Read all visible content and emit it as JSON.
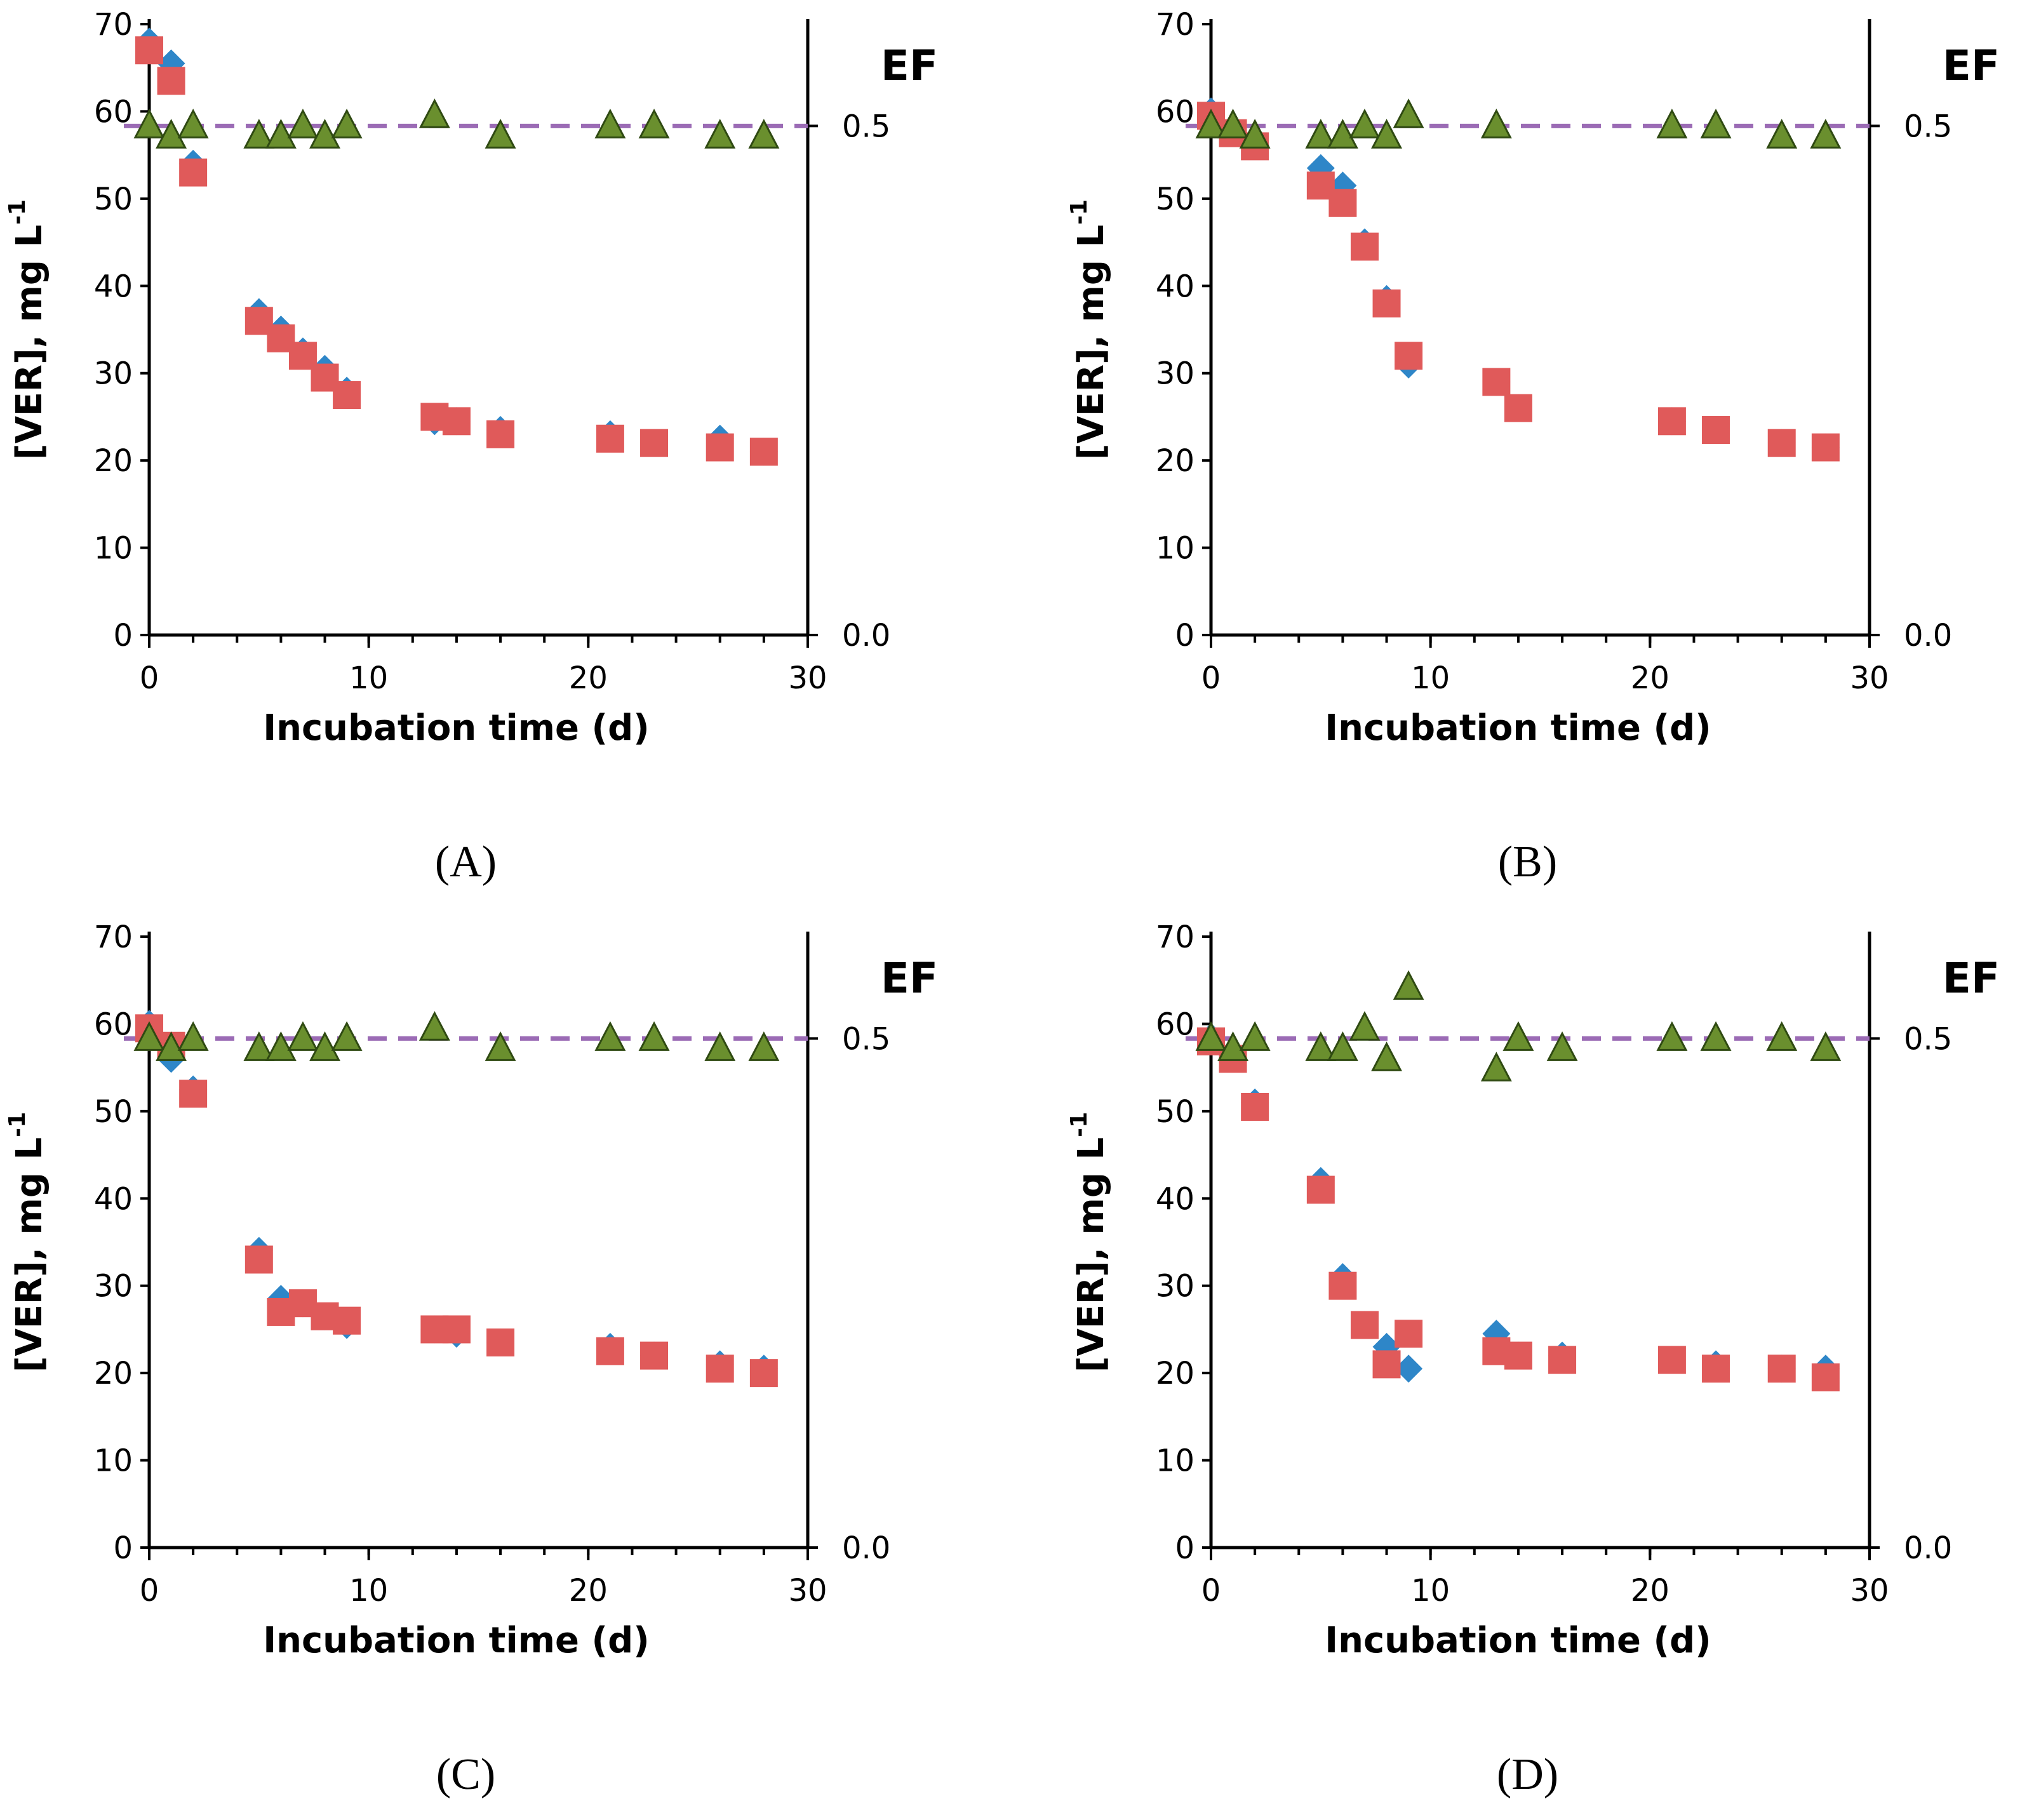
{
  "chart_data": [
    {
      "type": "scatter",
      "panel_label": "(A)",
      "xlabel": "Incubation time (d)",
      "ylabel": "[VER], mg L",
      "ylabel_superscript": "-1",
      "y2label": "EF",
      "xlim": [
        0,
        30
      ],
      "ylim": [
        0,
        70
      ],
      "y2lim": [
        0.0,
        0.6
      ],
      "xticks": [
        "0",
        "10",
        "20",
        "30"
      ],
      "yticks": [
        "0",
        "10",
        "20",
        "30",
        "40",
        "50",
        "60",
        "70"
      ],
      "y2ticks": [
        "0.0",
        "0.5"
      ],
      "ef_reference_line": 0.5,
      "series": [
        {
          "name": "blue diamonds",
          "marker": "diamond",
          "color": "#2e86c8",
          "axis": "left",
          "x": [
            0,
            1,
            2,
            5,
            6,
            7,
            8,
            9,
            13,
            14,
            16,
            21,
            23,
            26,
            28
          ],
          "y": [
            68,
            65.5,
            54,
            37,
            35,
            32.5,
            30.5,
            28,
            24.5,
            24.5,
            23.5,
            23,
            22,
            22.5,
            21
          ]
        },
        {
          "name": "red squares",
          "marker": "square",
          "color": "#e05a5a",
          "axis": "left",
          "x": [
            0,
            1,
            2,
            5,
            6,
            7,
            8,
            9,
            13,
            14,
            16,
            21,
            23,
            26,
            28
          ],
          "y": [
            67,
            63.5,
            53,
            36,
            34,
            32,
            29.5,
            27.5,
            25,
            24.5,
            23,
            22.5,
            22,
            21.5,
            21
          ]
        },
        {
          "name": "green triangles",
          "marker": "triangle",
          "color": "#6a8f2e",
          "axis": "right",
          "x": [
            0,
            1,
            2,
            5,
            6,
            7,
            8,
            9,
            13,
            16,
            21,
            23,
            26,
            28
          ],
          "y": [
            0.5,
            0.49,
            0.5,
            0.49,
            0.49,
            0.5,
            0.49,
            0.5,
            0.51,
            0.49,
            0.5,
            0.5,
            0.49,
            0.49
          ]
        }
      ]
    },
    {
      "type": "scatter",
      "panel_label": "(B)",
      "xlabel": "Incubation time (d)",
      "ylabel": "[VER], mg L",
      "ylabel_superscript": "-1",
      "y2label": "EF",
      "xlim": [
        0,
        30
      ],
      "ylim": [
        0,
        70
      ],
      "y2lim": [
        0.0,
        0.6
      ],
      "xticks": [
        "0",
        "10",
        "20",
        "30"
      ],
      "yticks": [
        "0",
        "10",
        "20",
        "30",
        "40",
        "50",
        "60",
        "70"
      ],
      "y2ticks": [
        "0.0",
        "0.5"
      ],
      "ef_reference_line": 0.5,
      "series": [
        {
          "name": "blue diamonds",
          "marker": "diamond",
          "color": "#2e86c8",
          "axis": "left",
          "x": [
            0,
            1,
            2,
            5,
            6,
            7,
            8,
            9,
            13,
            14,
            21,
            23,
            26,
            28
          ],
          "y": [
            60,
            58,
            56.5,
            53.5,
            51.5,
            45,
            38.5,
            31,
            29,
            26,
            24.5,
            23.5,
            22,
            21.5
          ]
        },
        {
          "name": "red squares",
          "marker": "square",
          "color": "#e05a5a",
          "axis": "left",
          "x": [
            0,
            1,
            2,
            5,
            6,
            7,
            8,
            9,
            13,
            14,
            21,
            23,
            26,
            28
          ],
          "y": [
            59.5,
            57.5,
            56,
            51.5,
            49.5,
            44.5,
            38,
            32,
            29,
            26,
            24.5,
            23.5,
            22,
            21.5
          ]
        },
        {
          "name": "green triangles",
          "marker": "triangle",
          "color": "#6a8f2e",
          "axis": "right",
          "x": [
            0,
            1,
            2,
            5,
            6,
            7,
            8,
            9,
            13,
            21,
            23,
            26,
            28
          ],
          "y": [
            0.5,
            0.5,
            0.49,
            0.49,
            0.49,
            0.5,
            0.49,
            0.51,
            0.5,
            0.5,
            0.5,
            0.49,
            0.49
          ]
        }
      ]
    },
    {
      "type": "scatter",
      "panel_label": "(C)",
      "xlabel": "Incubation time (d)",
      "ylabel": "[VER], mg L",
      "ylabel_superscript": "-1",
      "y2label": "EF",
      "xlim": [
        0,
        30
      ],
      "ylim": [
        0,
        70
      ],
      "y2lim": [
        0.0,
        0.6
      ],
      "xticks": [
        "0",
        "10",
        "20",
        "30"
      ],
      "yticks": [
        "0",
        "10",
        "20",
        "30",
        "40",
        "50",
        "60",
        "70"
      ],
      "y2ticks": [
        "0.0",
        "0.5"
      ],
      "ef_reference_line": 0.5,
      "series": [
        {
          "name": "blue diamonds",
          "marker": "diamond",
          "color": "#2e86c8",
          "axis": "left",
          "x": [
            0,
            1,
            2,
            5,
            6,
            7,
            8,
            9,
            13,
            14,
            16,
            21,
            23,
            26,
            28
          ],
          "y": [
            60,
            56,
            52.5,
            34,
            28.5,
            28,
            26.5,
            25.5,
            25,
            24.5,
            23.5,
            23,
            22,
            21,
            20.5
          ]
        },
        {
          "name": "red squares",
          "marker": "square",
          "color": "#e05a5a",
          "axis": "left",
          "x": [
            0,
            1,
            2,
            5,
            6,
            7,
            8,
            9,
            13,
            14,
            16,
            21,
            23,
            26,
            28
          ],
          "y": [
            59.5,
            57.5,
            52,
            33,
            27,
            28,
            26.5,
            26,
            25,
            25,
            23.5,
            22.5,
            22,
            20.5,
            20
          ]
        },
        {
          "name": "green triangles",
          "marker": "triangle",
          "color": "#6a8f2e",
          "axis": "right",
          "x": [
            0,
            1,
            2,
            5,
            6,
            7,
            8,
            9,
            13,
            16,
            21,
            23,
            26,
            28
          ],
          "y": [
            0.5,
            0.49,
            0.5,
            0.49,
            0.49,
            0.5,
            0.49,
            0.5,
            0.51,
            0.49,
            0.5,
            0.5,
            0.49,
            0.49
          ]
        }
      ]
    },
    {
      "type": "scatter",
      "panel_label": "(D)",
      "xlabel": "Incubation time (d)",
      "ylabel": "[VER], mg L",
      "ylabel_superscript": "-1",
      "y2label": "EF",
      "xlim": [
        0,
        30
      ],
      "ylim": [
        0,
        70
      ],
      "y2lim": [
        0.0,
        0.6
      ],
      "xticks": [
        "0",
        "10",
        "20",
        "30"
      ],
      "yticks": [
        "0",
        "10",
        "20",
        "30",
        "40",
        "50",
        "60",
        "70"
      ],
      "y2ticks": [
        "0.0",
        "0.5"
      ],
      "ef_reference_line": 0.5,
      "series": [
        {
          "name": "blue diamonds",
          "marker": "diamond",
          "color": "#2e86c8",
          "axis": "left",
          "x": [
            0,
            1,
            2,
            5,
            6,
            7,
            8,
            9,
            13,
            14,
            16,
            21,
            23,
            26,
            28
          ],
          "y": [
            58.5,
            56.5,
            51,
            42,
            31,
            25.5,
            23,
            20.5,
            24.5,
            22,
            22,
            21.5,
            21,
            20.5,
            20.5
          ]
        },
        {
          "name": "red squares",
          "marker": "square",
          "color": "#e05a5a",
          "axis": "left",
          "x": [
            0,
            1,
            2,
            5,
            6,
            7,
            8,
            9,
            13,
            14,
            16,
            21,
            23,
            26,
            28
          ],
          "y": [
            58,
            56,
            50.5,
            41,
            30,
            25.5,
            21,
            24.5,
            22.5,
            22,
            21.5,
            21.5,
            20.5,
            20.5,
            19.5
          ]
        },
        {
          "name": "green triangles",
          "marker": "triangle",
          "color": "#6a8f2e",
          "axis": "right",
          "x": [
            0,
            1,
            2,
            5,
            6,
            7,
            8,
            9,
            13,
            14,
            16,
            21,
            23,
            26,
            28
          ],
          "y": [
            0.5,
            0.49,
            0.5,
            0.49,
            0.49,
            0.51,
            0.48,
            0.55,
            0.47,
            0.5,
            0.49,
            0.5,
            0.5,
            0.5,
            0.49
          ]
        }
      ]
    }
  ],
  "colors": {
    "blue": "#2e86c8",
    "red": "#e05a5a",
    "green": "#6a8f2e",
    "reference_line": "#9b6bb5"
  }
}
